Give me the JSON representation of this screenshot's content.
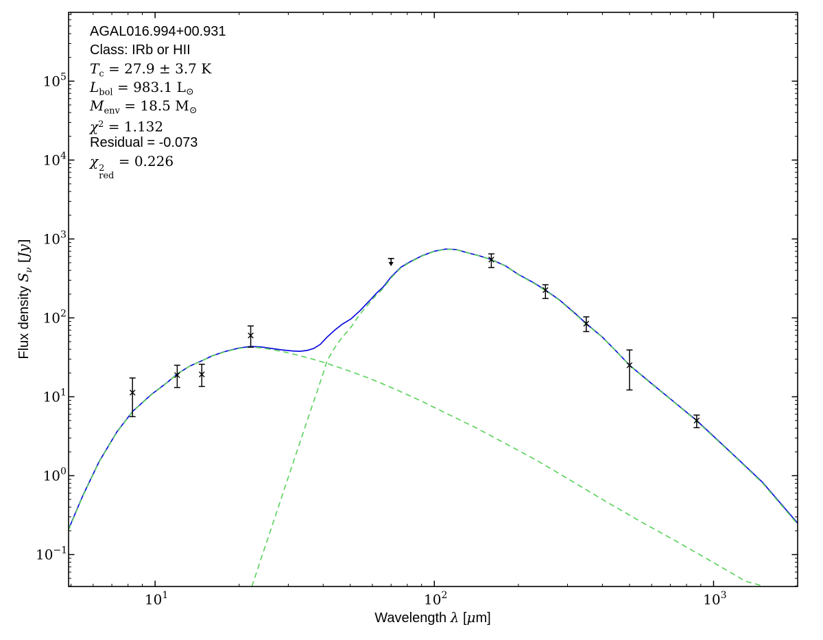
{
  "annotation": {
    "source_name": "AGAL016.994+00.931",
    "class_line": "Class: IRb or HII",
    "t_c": {
      "var": "T",
      "sub": "c",
      "rest": " = 27.9 ± 3.7 K"
    },
    "l_bol": {
      "var": "L",
      "sub": "bol",
      "rest": " = 983.1 L",
      "sun": "⊙"
    },
    "m_env": {
      "var": "M",
      "sub": "env",
      "rest": " = 18.5 M",
      "sun": "⊙"
    },
    "chi2": {
      "var": "χ",
      "sup": "2",
      "rest": " = 1.132"
    },
    "residual": "Residual = -0.073",
    "chi2_red": {
      "var": "χ",
      "sup": "2",
      "sub": "red",
      "rest": " = 0.226"
    }
  },
  "x_axis": {
    "prefix": "Wavelength ",
    "lambda": "λ",
    "bracket_open": " [",
    "mu": "μ",
    "end": "m]"
  },
  "y_axis": {
    "prefix": "Flux density ",
    "s_var": "S",
    "s_sub": "ν",
    "bracket_open": " [",
    "unit": "Jy",
    "end": "]"
  },
  "colors": {
    "model_total": "#0b0be0",
    "model_components": "#5fd35f",
    "data_points": "#000000",
    "axes": "#000000",
    "background": "#ffffff"
  },
  "chart_data": {
    "type": "line",
    "title": "",
    "xlabel": "Wavelength λ [μm]",
    "ylabel": "Flux density S_ν [Jy]",
    "x_scale": "log",
    "y_scale": "log",
    "xlim": [
      4.9,
      2000
    ],
    "ylim": [
      0.0394,
      745000
    ],
    "x_tick_exponents": [
      1,
      2,
      3
    ],
    "y_tick_exponents": [
      -1,
      0,
      1,
      2,
      3,
      4,
      5
    ],
    "grid": false,
    "legend": null,
    "annotations": [
      "AGAL016.994+00.931",
      "Class: IRb or HII",
      "T_c = 27.9 ± 3.7 K",
      "L_bol = 983.1 L_sun",
      "M_env = 18.5 M_sun",
      "chi^2 = 1.132",
      "Residual = -0.073",
      "chi^2_red = 0.226"
    ],
    "series": [
      {
        "name": "total-model-fit",
        "style": "solid",
        "color": "#0b0be0",
        "points": [
          [
            4.9,
            0.21
          ],
          [
            5.5,
            0.55
          ],
          [
            6.3,
            1.5
          ],
          [
            7.3,
            3.6
          ],
          [
            8.3,
            6.5
          ],
          [
            9.7,
            10.7
          ],
          [
            11,
            15
          ],
          [
            12,
            19.5
          ],
          [
            13.3,
            24.5
          ],
          [
            14.6,
            28.3
          ],
          [
            16,
            33
          ],
          [
            17.8,
            37.5
          ],
          [
            20,
            41.5
          ],
          [
            22,
            43.5
          ],
          [
            24,
            42.7
          ],
          [
            26,
            41
          ],
          [
            28.5,
            39.3
          ],
          [
            31,
            38.1
          ],
          [
            33,
            37.7
          ],
          [
            35,
            38.6
          ],
          [
            37,
            41
          ],
          [
            39,
            46
          ],
          [
            41.3,
            57
          ],
          [
            44,
            70
          ],
          [
            47,
            84
          ],
          [
            50.3,
            97
          ],
          [
            54,
            122
          ],
          [
            58.6,
            165
          ],
          [
            62,
            205
          ],
          [
            65.5,
            245
          ],
          [
            70,
            330
          ],
          [
            76,
            440
          ],
          [
            82,
            515
          ],
          [
            90,
            610
          ],
          [
            100,
            700
          ],
          [
            110,
            745
          ],
          [
            120,
            735
          ],
          [
            130,
            677
          ],
          [
            145,
            612
          ],
          [
            160,
            548
          ],
          [
            180,
            455
          ],
          [
            200,
            355
          ],
          [
            225,
            283
          ],
          [
            250,
            225
          ],
          [
            280,
            170
          ],
          [
            320,
            113
          ],
          [
            350,
            84.5
          ],
          [
            400,
            57
          ],
          [
            450,
            37.3
          ],
          [
            500,
            25.1
          ],
          [
            600,
            14.7
          ],
          [
            700,
            9.4
          ],
          [
            870,
            5.0
          ],
          [
            1000,
            3.16
          ],
          [
            1200,
            1.73
          ],
          [
            1500,
            0.82
          ],
          [
            2000,
            0.25
          ]
        ]
      },
      {
        "name": "cold-envelope-component",
        "style": "dashed",
        "color": "#5fd35f",
        "points": [
          [
            22.2,
            0.0394
          ],
          [
            24,
            0.09
          ],
          [
            26,
            0.21
          ],
          [
            28,
            0.46
          ],
          [
            30,
            0.96
          ],
          [
            32,
            1.9
          ],
          [
            34,
            3.6
          ],
          [
            36,
            6.6
          ],
          [
            38,
            11.5
          ],
          [
            40,
            20
          ],
          [
            41.3,
            28.6
          ],
          [
            44,
            42
          ],
          [
            47,
            58
          ],
          [
            50.3,
            76
          ],
          [
            54,
            110
          ],
          [
            58.6,
            155
          ],
          [
            62,
            195
          ],
          [
            65.5,
            235
          ],
          [
            70,
            320
          ],
          [
            76,
            432
          ],
          [
            82,
            508
          ],
          [
            90,
            604
          ],
          [
            100,
            695
          ],
          [
            110,
            740
          ],
          [
            120,
            731
          ],
          [
            130,
            673
          ],
          [
            145,
            608
          ],
          [
            160,
            545
          ],
          [
            180,
            452
          ],
          [
            200,
            352
          ],
          [
            225,
            280
          ],
          [
            250,
            222
          ],
          [
            280,
            168
          ],
          [
            320,
            111
          ],
          [
            350,
            83.5
          ],
          [
            400,
            56.5
          ],
          [
            450,
            37
          ],
          [
            500,
            24.9
          ],
          [
            600,
            14.5
          ],
          [
            700,
            9.3
          ],
          [
            870,
            4.93
          ],
          [
            1000,
            3.1
          ],
          [
            1200,
            1.7
          ],
          [
            1500,
            0.8
          ],
          [
            2000,
            0.242
          ]
        ]
      },
      {
        "name": "hot-compact-component",
        "style": "dashed",
        "color": "#5fd35f",
        "points": [
          [
            4.9,
            0.205
          ],
          [
            5.5,
            0.54
          ],
          [
            6.3,
            1.48
          ],
          [
            7.3,
            3.55
          ],
          [
            8.3,
            6.45
          ],
          [
            9.7,
            10.6
          ],
          [
            11,
            14.9
          ],
          [
            12,
            19.4
          ],
          [
            13.3,
            24.4
          ],
          [
            14.6,
            28.2
          ],
          [
            16,
            32.8
          ],
          [
            17.8,
            37.2
          ],
          [
            20,
            41
          ],
          [
            22,
            42.8
          ],
          [
            24,
            41.6
          ],
          [
            26,
            39.8
          ],
          [
            28.5,
            37.5
          ],
          [
            31,
            35
          ],
          [
            33,
            33.2
          ],
          [
            35,
            31.4
          ],
          [
            37,
            29.7
          ],
          [
            40,
            27.4
          ],
          [
            44,
            24.6
          ],
          [
            48,
            22.1
          ],
          [
            53,
            19.5
          ],
          [
            58,
            17.3
          ],
          [
            65,
            14.7
          ],
          [
            75,
            11.8
          ],
          [
            90,
            8.8
          ],
          [
            110,
            6.2
          ],
          [
            140,
            4.1
          ],
          [
            180,
            2.55
          ],
          [
            230,
            1.6
          ],
          [
            300,
            0.92
          ],
          [
            400,
            0.5
          ],
          [
            550,
            0.26
          ],
          [
            700,
            0.163
          ],
          [
            900,
            0.098
          ],
          [
            1100,
            0.065
          ],
          [
            1300,
            0.046
          ],
          [
            1525,
            0.0394
          ]
        ]
      }
    ],
    "data_points": [
      {
        "wavelength_um": 8.3,
        "flux_jy": 11.3,
        "flux_lo_jy": 5.6,
        "flux_hi_jy": 17.3,
        "marker": "x"
      },
      {
        "wavelength_um": 12,
        "flux_jy": 18.8,
        "flux_lo_jy": 13.1,
        "flux_hi_jy": 25.1,
        "marker": "x"
      },
      {
        "wavelength_um": 14.7,
        "flux_jy": 19.2,
        "flux_lo_jy": 13.5,
        "flux_hi_jy": 25.8,
        "marker": "x"
      },
      {
        "wavelength_um": 22,
        "flux_jy": 59.8,
        "flux_lo_jy": 42.5,
        "flux_hi_jy": 79,
        "marker": "x"
      },
      {
        "wavelength_um": 70,
        "flux_jy": 566,
        "upper_limit": true,
        "arrow_tip_jy": 452,
        "marker": "down-arrow"
      },
      {
        "wavelength_um": 160,
        "flux_jy": 548,
        "flux_lo_jy": 434,
        "flux_hi_jy": 647,
        "marker": "x"
      },
      {
        "wavelength_um": 250,
        "flux_jy": 225,
        "flux_lo_jy": 176,
        "flux_hi_jy": 263,
        "marker": "x"
      },
      {
        "wavelength_um": 350,
        "flux_jy": 84.5,
        "flux_lo_jy": 67,
        "flux_hi_jy": 103,
        "marker": "x"
      },
      {
        "wavelength_um": 500,
        "flux_jy": 25.1,
        "flux_lo_jy": 12.2,
        "flux_hi_jy": 39.2,
        "marker": "x"
      },
      {
        "wavelength_um": 870,
        "flux_jy": 5.0,
        "flux_lo_jy": 4.06,
        "flux_hi_jy": 5.86,
        "marker": "x"
      }
    ]
  }
}
